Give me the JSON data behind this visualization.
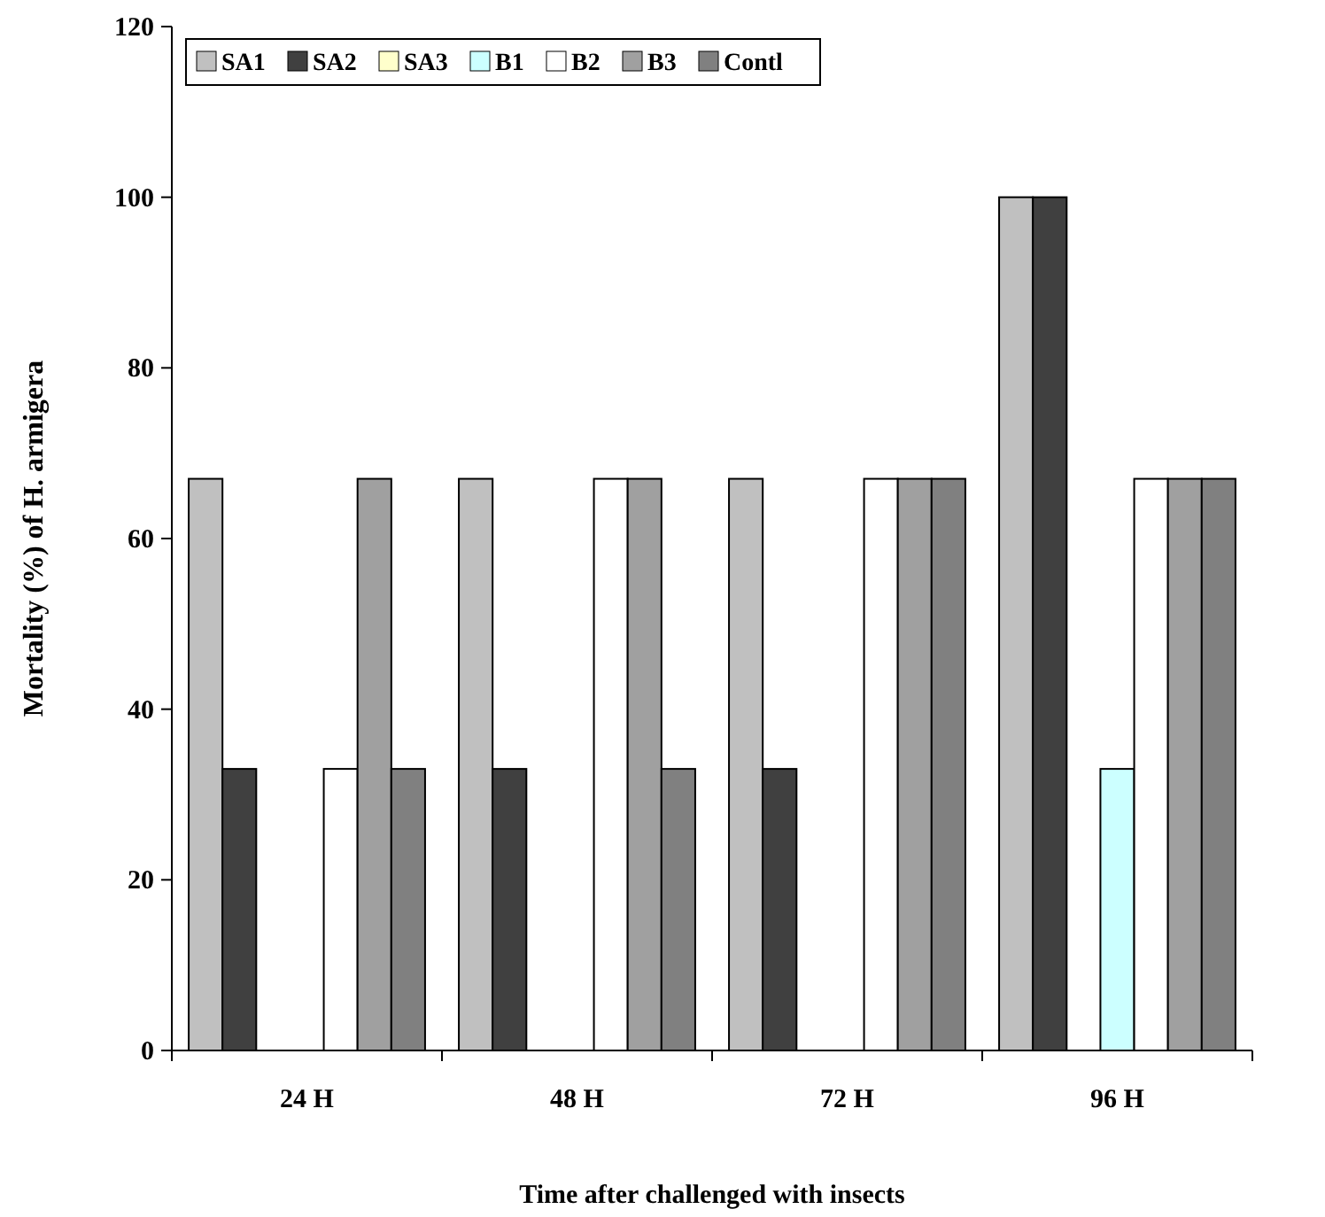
{
  "chart_data": {
    "type": "bar",
    "xlabel": "Time after challenged with insects",
    "ylabel": "Mortality (%) of H. armigera",
    "categories": [
      "24 H",
      "48 H",
      "72 H",
      "96 H"
    ],
    "series": [
      {
        "name": "SA1",
        "color": "#c0c0c0",
        "values": [
          67,
          67,
          67,
          100
        ]
      },
      {
        "name": "SA2",
        "color": "#404040",
        "values": [
          33,
          33,
          33,
          100
        ]
      },
      {
        "name": "SA3",
        "color": "#ffffcc",
        "values": [
          0,
          0,
          0,
          0
        ]
      },
      {
        "name": "B1",
        "color": "#ccffff",
        "values": [
          0,
          0,
          0,
          33
        ]
      },
      {
        "name": "B2",
        "color": "#ffffff",
        "values": [
          33,
          67,
          67,
          67
        ]
      },
      {
        "name": "B3",
        "color": "#a0a0a0",
        "values": [
          67,
          67,
          67,
          67
        ]
      },
      {
        "name": "Contl",
        "color": "#808080",
        "values": [
          33,
          33,
          67,
          67
        ]
      }
    ],
    "ylim": [
      0,
      120
    ],
    "yticks": [
      0,
      20,
      40,
      60,
      80,
      100,
      120
    ],
    "grid": false,
    "legend": "top left"
  }
}
